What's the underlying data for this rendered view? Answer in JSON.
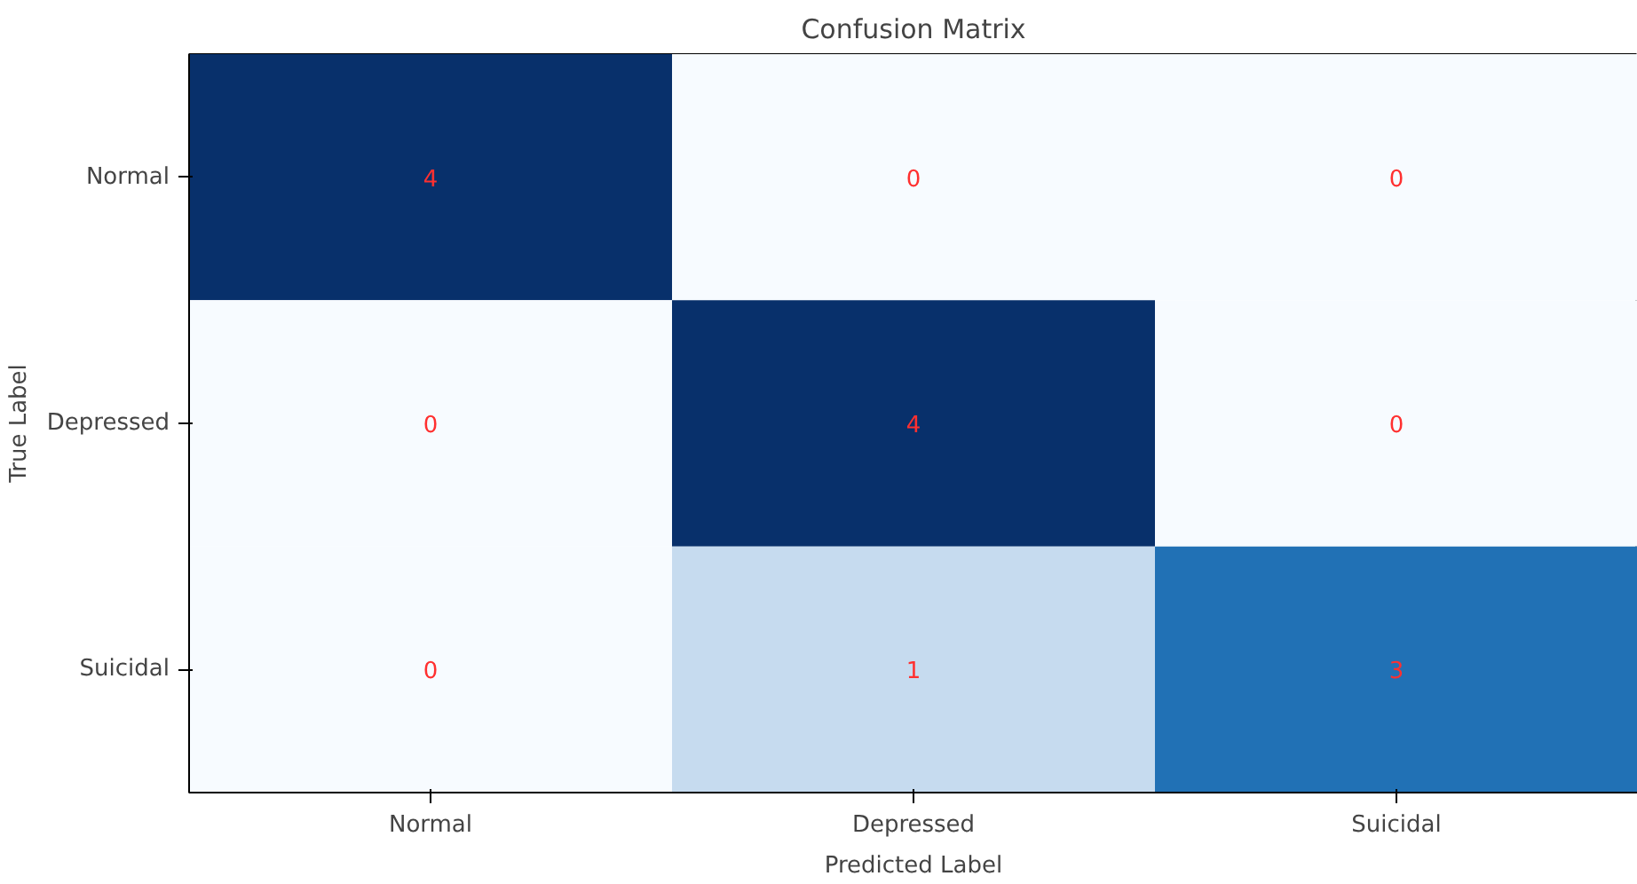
{
  "chart_data": {
    "type": "heatmap",
    "title": "Confusion Matrix",
    "xlabel": "Predicted Label",
    "ylabel": "True Label",
    "categories": [
      "Normal",
      "Depressed",
      "Suicidal"
    ],
    "y_categories": [
      "Normal",
      "Depressed",
      "Suicidal"
    ],
    "cells": [
      [
        4,
        0,
        0
      ],
      [
        0,
        4,
        0
      ],
      [
        0,
        1,
        3
      ]
    ],
    "data_labels": true
  }
}
